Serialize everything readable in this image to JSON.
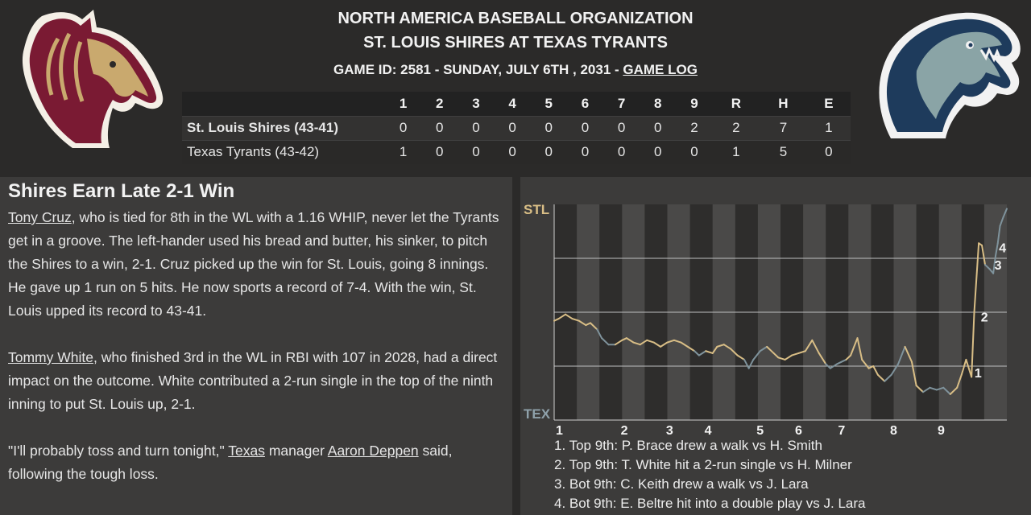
{
  "header": {
    "org": "NORTH AMERICA BASEBALL ORGANIZATION",
    "matchup": "ST. LOUIS SHIRES AT TEXAS TYRANTS",
    "game_info": "GAME ID: 2581 - SUNDAY, JULY 6TH , 2031 - ",
    "game_log_link": "GAME LOG"
  },
  "logos": {
    "away": "horse-logo",
    "home": "tyrannosaurus-logo"
  },
  "linescore": {
    "columns": [
      "1",
      "2",
      "3",
      "4",
      "5",
      "6",
      "7",
      "8",
      "9",
      "R",
      "H",
      "E"
    ],
    "teams": [
      {
        "name": "St. Louis Shires (43-41)",
        "scores": [
          "0",
          "0",
          "0",
          "0",
          "0",
          "0",
          "0",
          "0",
          "2",
          "2",
          "7",
          "1"
        ]
      },
      {
        "name": "Texas Tyrants (43-42)",
        "scores": [
          "1",
          "0",
          "0",
          "0",
          "0",
          "0",
          "0",
          "0",
          "0",
          "1",
          "5",
          "0"
        ]
      }
    ]
  },
  "story": {
    "headline": "Shires Earn Late 2-1 Win",
    "p1_link": "Tony Cruz",
    "p1_text": ", who is tied for 8th in the WL with a 1.16 WHIP, never let the Tyrants get in a groove. The left-hander used his bread and butter, his sinker, to pitch the Shires to a win, 2-1. Cruz picked up the win for St. Louis, going 8 innings. He gave up 1 run on 5 hits. He now sports a record of 7-4. With the win, St. Louis upped its record to 43-41.",
    "p2_link": "Tommy White",
    "p2_text": ", who finished 3rd in the WL in RBI with 107 in 2028, had a direct impact on the outcome. White contributed a 2-run single in the top of the ninth inning to put St. Louis up, 2-1.",
    "p3_a": "\"I'll probably toss and turn tonight,\" ",
    "p3_link1": "Texas",
    "p3_b": " manager ",
    "p3_link2": "Aaron Deppen",
    "p3_c": " said, following the tough loss."
  },
  "chart_data": {
    "type": "line",
    "top_label": "STL",
    "bottom_label": "TEX",
    "x_ticks": [
      "1",
      "2",
      "3",
      "4",
      "5",
      "6",
      "7",
      "8",
      "9"
    ],
    "ylim": [
      0,
      100
    ],
    "colors": {
      "stl": "#d9be86",
      "tex": "#7f939c"
    },
    "points": [
      [
        0.0,
        46
      ],
      [
        0.1,
        47
      ],
      [
        0.25,
        49
      ],
      [
        0.4,
        47
      ],
      [
        0.55,
        46
      ],
      [
        0.7,
        44
      ],
      [
        0.8,
        45
      ],
      [
        0.95,
        42
      ],
      [
        1.05,
        38
      ],
      [
        1.2,
        35
      ],
      [
        1.35,
        35
      ],
      [
        1.5,
        37
      ],
      [
        1.6,
        38
      ],
      [
        1.75,
        36
      ],
      [
        1.9,
        35
      ],
      [
        2.05,
        37
      ],
      [
        2.2,
        36
      ],
      [
        2.35,
        34
      ],
      [
        2.5,
        36
      ],
      [
        2.65,
        37
      ],
      [
        2.8,
        36
      ],
      [
        2.95,
        34
      ],
      [
        3.1,
        32
      ],
      [
        3.2,
        30
      ],
      [
        3.35,
        32
      ],
      [
        3.5,
        31
      ],
      [
        3.6,
        34
      ],
      [
        3.75,
        35
      ],
      [
        3.9,
        33
      ],
      [
        4.05,
        30
      ],
      [
        4.2,
        28
      ],
      [
        4.3,
        24
      ],
      [
        4.4,
        28
      ],
      [
        4.55,
        32
      ],
      [
        4.7,
        34
      ],
      [
        4.85,
        31
      ],
      [
        4.95,
        29
      ],
      [
        5.1,
        28
      ],
      [
        5.25,
        30
      ],
      [
        5.4,
        31
      ],
      [
        5.55,
        32
      ],
      [
        5.7,
        37
      ],
      [
        5.85,
        31
      ],
      [
        6.0,
        26
      ],
      [
        6.1,
        24
      ],
      [
        6.25,
        26
      ],
      [
        6.45,
        28
      ],
      [
        6.55,
        30
      ],
      [
        6.7,
        38
      ],
      [
        6.8,
        28
      ],
      [
        6.95,
        24
      ],
      [
        7.05,
        25
      ],
      [
        7.15,
        21
      ],
      [
        7.3,
        18
      ],
      [
        7.45,
        21
      ],
      [
        7.6,
        26
      ],
      [
        7.75,
        34
      ],
      [
        7.9,
        27
      ],
      [
        8.0,
        16
      ],
      [
        8.15,
        13
      ],
      [
        8.3,
        15
      ],
      [
        8.45,
        14
      ],
      [
        8.6,
        15
      ],
      [
        8.75,
        12
      ],
      [
        8.9,
        15
      ],
      [
        9.0,
        21
      ],
      [
        9.1,
        28
      ],
      [
        9.22,
        20
      ],
      [
        9.28,
        50
      ],
      [
        9.38,
        82
      ],
      [
        9.45,
        81
      ],
      [
        9.52,
        72
      ],
      [
        9.62,
        70
      ],
      [
        9.7,
        68
      ],
      [
        9.75,
        76
      ],
      [
        9.8,
        82
      ],
      [
        9.85,
        90
      ],
      [
        9.92,
        94
      ],
      [
        10.0,
        98
      ]
    ],
    "markers": [
      {
        "label": "1",
        "x": 9.18,
        "y": 22
      },
      {
        "label": "2",
        "x": 9.32,
        "y": 48
      },
      {
        "label": "3",
        "x": 9.62,
        "y": 72
      },
      {
        "label": "4",
        "x": 9.72,
        "y": 80
      }
    ],
    "notes": [
      "1. Top 9th: P. Brace drew a walk vs H. Smith",
      "2. Top 9th: T. White hit a 2-run single vs H. Milner",
      "3. Bot 9th: C. Keith drew a walk vs J. Lara",
      "4. Bot 9th: E. Beltre hit into a double play vs J. Lara"
    ]
  }
}
